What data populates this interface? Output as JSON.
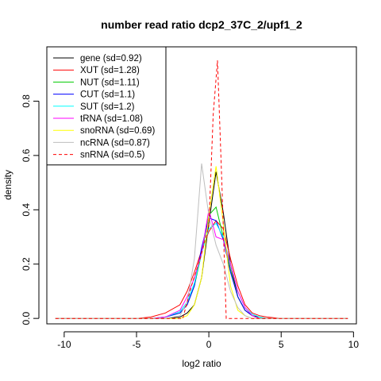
{
  "chart_data": {
    "type": "line",
    "title": "number read ratio dcp2_37C_2/upf1_2",
    "xlabel": "log2 ratio",
    "ylabel": "density",
    "xlim": [
      -11.2,
      10.2
    ],
    "ylim": [
      -0.02,
      1.0
    ],
    "x_ticks": [
      -10,
      -5,
      0,
      5,
      10
    ],
    "y_ticks": [
      0.0,
      0.2,
      0.4,
      0.6,
      0.8
    ],
    "grid": false,
    "legend_position": "top-left",
    "series": [
      {
        "name": "gene (sd=0.92)",
        "color": "#000000",
        "dash": false,
        "x": [
          -10.6,
          -5,
          -4,
          -3,
          -2,
          -1.5,
          -1,
          -0.5,
          0,
          0.5,
          1,
          1.5,
          2,
          2.5,
          3,
          3.5,
          4,
          5,
          9.6
        ],
        "y": [
          0,
          0,
          0,
          0,
          0.005,
          0.02,
          0.05,
          0.15,
          0.35,
          0.54,
          0.39,
          0.2,
          0.08,
          0.03,
          0.01,
          0.005,
          0,
          0,
          0
        ]
      },
      {
        "name": "XUT (sd=1.28)",
        "color": "#ff0000",
        "dash": false,
        "x": [
          -10.6,
          -5,
          -4,
          -3,
          -2,
          -1.5,
          -1,
          -0.5,
          0,
          0.5,
          1,
          1.5,
          2,
          2.5,
          3,
          3.5,
          4,
          5,
          9.6
        ],
        "y": [
          0,
          0,
          0.005,
          0.02,
          0.05,
          0.1,
          0.17,
          0.25,
          0.32,
          0.36,
          0.33,
          0.22,
          0.12,
          0.05,
          0.02,
          0.01,
          0.005,
          0,
          0
        ]
      },
      {
        "name": "NUT (sd=1.11)",
        "color": "#00cc00",
        "dash": false,
        "x": [
          -10.6,
          -5,
          -4,
          -3,
          -2,
          -1.5,
          -1,
          -0.5,
          0,
          0.5,
          1,
          1.5,
          2,
          2.5,
          3,
          3.5,
          4,
          5,
          9.6
        ],
        "y": [
          0,
          0,
          0,
          0.005,
          0.02,
          0.05,
          0.12,
          0.24,
          0.38,
          0.41,
          0.3,
          0.18,
          0.08,
          0.03,
          0.01,
          0,
          0,
          0,
          0
        ]
      },
      {
        "name": "CUT (sd=1.1)",
        "color": "#0000ff",
        "dash": false,
        "x": [
          -10.6,
          -5,
          -4,
          -3,
          -2,
          -1.5,
          -1,
          -0.5,
          0,
          0.5,
          1,
          1.5,
          2,
          2.5,
          3,
          3.5,
          4,
          5,
          9.6
        ],
        "y": [
          0,
          0,
          0,
          0.005,
          0.02,
          0.05,
          0.12,
          0.26,
          0.37,
          0.36,
          0.29,
          0.17,
          0.08,
          0.03,
          0.01,
          0,
          0,
          0,
          0
        ]
      },
      {
        "name": "SUT (sd=1.2)",
        "color": "#00ffff",
        "dash": false,
        "x": [
          -10.6,
          -5,
          -4,
          -3,
          -2,
          -1.5,
          -1,
          -0.5,
          0,
          0.5,
          1,
          1.5,
          2,
          2.5,
          3,
          3.5,
          4,
          5,
          9.6
        ],
        "y": [
          0,
          0,
          0,
          0.005,
          0.025,
          0.06,
          0.13,
          0.24,
          0.33,
          0.35,
          0.3,
          0.2,
          0.1,
          0.04,
          0.015,
          0.005,
          0,
          0,
          0
        ]
      },
      {
        "name": "tRNA (sd=1.08)",
        "color": "#ff00ff",
        "dash": false,
        "x": [
          -10.6,
          -5,
          -4,
          -3,
          -2,
          -1.5,
          -1,
          -0.5,
          0,
          0.5,
          1,
          1.5,
          2,
          2.5,
          3,
          3.5,
          4,
          5,
          9.6
        ],
        "y": [
          0,
          0,
          0,
          0.005,
          0.03,
          0.08,
          0.15,
          0.24,
          0.4,
          0.3,
          0.29,
          0.2,
          0.1,
          0.04,
          0.01,
          0,
          0,
          0,
          0
        ]
      },
      {
        "name": "snoRNA (sd=0.69)",
        "color": "#ffff00",
        "dash": false,
        "x": [
          -10.6,
          -5,
          -3,
          -2,
          -1.5,
          -1,
          -0.5,
          0,
          0.5,
          1,
          1.5,
          2,
          2.5,
          3,
          9.6
        ],
        "y": [
          0,
          0,
          0,
          0,
          0.01,
          0.05,
          0.15,
          0.38,
          0.56,
          0.35,
          0.12,
          0.03,
          0.01,
          0,
          0
        ]
      },
      {
        "name": "ncRNA (sd=0.87)",
        "color": "#bebebe",
        "dash": false,
        "x": [
          -10.6,
          -5,
          -3,
          -2,
          -1.5,
          -1,
          -0.5,
          0,
          0.5,
          1,
          1.5,
          2,
          2.5,
          3,
          9.6
        ],
        "y": [
          0,
          0,
          0,
          0.01,
          0.06,
          0.22,
          0.57,
          0.38,
          0.27,
          0.2,
          0.1,
          0.04,
          0.01,
          0,
          0
        ]
      },
      {
        "name": "snRNA (sd=0.5)",
        "color": "#ff0000",
        "dash": true,
        "x": [
          -10.6,
          -1.8,
          -1.2,
          -0.6,
          0,
          0.3,
          0.6,
          0.9,
          1.2,
          1.8,
          9.6
        ],
        "y": [
          0,
          0,
          0.12,
          0.22,
          0.34,
          0.75,
          0.95,
          0.5,
          0,
          0,
          0
        ]
      }
    ]
  }
}
